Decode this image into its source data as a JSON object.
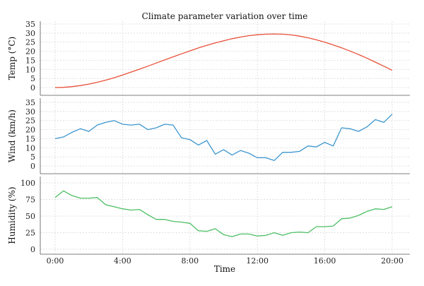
{
  "chart_data": {
    "type": "line",
    "title": "Climate parameter variation over time",
    "xlabel": "Time",
    "x_ticks": [
      "0:00",
      "4:00",
      "8:00",
      "12:00",
      "16:00",
      "20:00"
    ],
    "xlim": [
      0,
      20
    ],
    "grid": true,
    "panels": [
      {
        "ylabel": "Temp (°C)",
        "ylim": [
          0,
          35
        ],
        "y_ticks": [
          0,
          5,
          10,
          15,
          20,
          25,
          30,
          35
        ],
        "color": "#e8503a",
        "series": [
          {
            "x": [
              0,
              0.5,
              1,
              1.5,
              2,
              2.5,
              3,
              3.5,
              4,
              4.5,
              5,
              5.5,
              6,
              6.5,
              7,
              7.5,
              8,
              8.5,
              9,
              9.5,
              10,
              10.5,
              11,
              11.5,
              12,
              12.5,
              13,
              13.5,
              14,
              14.5,
              15,
              15.5,
              16,
              16.5,
              17,
              17.5,
              18,
              18.5,
              19,
              19.5,
              20
            ],
            "values": [
              0,
              0.1,
              0.5,
              1.1,
              1.9,
              2.9,
              4.1,
              5.4,
              6.9,
              8.5,
              10.1,
              11.8,
              13.5,
              15.2,
              16.9,
              18.6,
              20.2,
              21.8,
              23.2,
              24.6,
              25.8,
              26.9,
              27.8,
              28.6,
              29.1,
              29.4,
              29.5,
              29.4,
              29.0,
              28.3,
              27.4,
              26.3,
              25.0,
              23.5,
              21.9,
              20.1,
              18.2,
              16.2,
              14.0,
              11.8,
              9.5
            ]
          }
        ]
      },
      {
        "ylabel": "Wind (km/h)",
        "ylim": [
          0,
          35
        ],
        "y_ticks": [
          0,
          5,
          10,
          15,
          20,
          25,
          30,
          35
        ],
        "color": "#3d96d0",
        "series": [
          {
            "x": [
              0,
              0.5,
              1,
              1.5,
              2,
              2.5,
              3,
              3.5,
              4,
              4.5,
              5,
              5.5,
              6,
              6.5,
              7,
              7.5,
              8,
              8.5,
              9,
              9.5,
              10,
              10.5,
              11,
              11.5,
              12,
              12.5,
              13,
              13.5,
              14,
              14.5,
              15,
              15.5,
              16,
              16.5,
              17,
              17.5,
              18,
              18.5,
              19,
              19.5,
              20
            ],
            "values": [
              15,
              16,
              18.5,
              20.5,
              19,
              22.5,
              24,
              25,
              23,
              22.5,
              23,
              20,
              21,
              23,
              22.5,
              15.5,
              14.5,
              11.5,
              14,
              6.5,
              9,
              6,
              8.5,
              7,
              4.5,
              4.5,
              3,
              7.5,
              7.5,
              8,
              11,
              10.5,
              13,
              11,
              21,
              20.5,
              19,
              21.5,
              25.5,
              24,
              28.5
            ]
          }
        ]
      },
      {
        "ylabel": "Humidity (%)",
        "ylim": [
          0,
          100
        ],
        "y_ticks": [
          0,
          25,
          50,
          75,
          100
        ],
        "color": "#4cbf64",
        "series": [
          {
            "x": [
              0,
              0.5,
              1,
              1.5,
              2,
              2.5,
              3,
              3.5,
              4,
              4.5,
              5,
              5.5,
              6,
              6.5,
              7,
              7.5,
              8,
              8.5,
              9,
              9.5,
              10,
              10.5,
              11,
              11.5,
              12,
              12.5,
              13,
              13.5,
              14,
              14.5,
              15,
              15.5,
              16,
              16.5,
              17,
              17.5,
              18,
              18.5,
              19,
              19.5,
              20
            ],
            "values": [
              78,
              88,
              81,
              77,
              77,
              78,
              67,
              64,
              61,
              59,
              60,
              52,
              45,
              45,
              42,
              41,
              39,
              28,
              27,
              31,
              22,
              19,
              23,
              23,
              20,
              21,
              25,
              21,
              25,
              26,
              25,
              34,
              34,
              35,
              46,
              47,
              51,
              57,
              61,
              60,
              64
            ]
          }
        ]
      }
    ]
  }
}
